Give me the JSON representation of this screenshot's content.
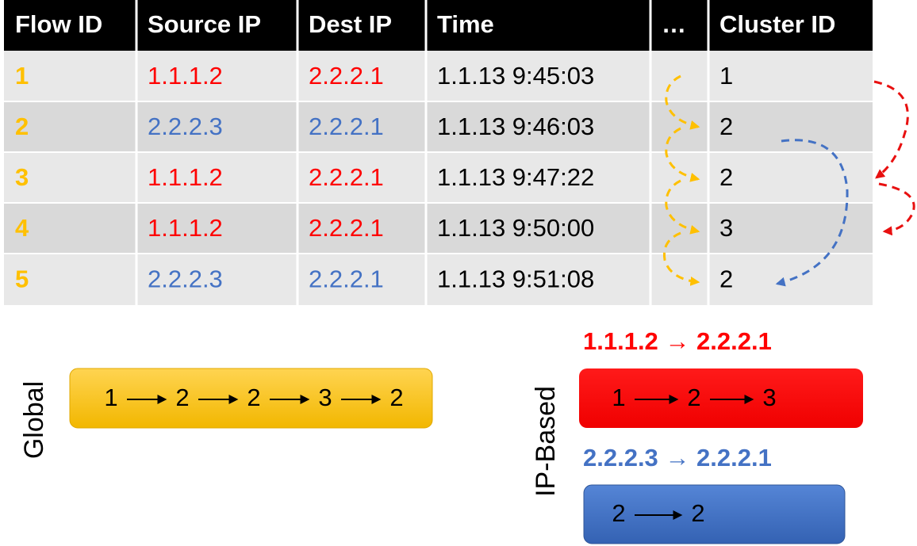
{
  "table": {
    "headers": [
      "Flow ID",
      "Source IP",
      "Dest IP",
      "Time",
      "…",
      "Cluster ID"
    ],
    "rows": [
      {
        "cells": [
          "1",
          "1.1.1.2",
          "2.2.2.1",
          "1.1.13 9:45:03",
          "1"
        ],
        "color": "#ff0000"
      },
      {
        "cells": [
          "2",
          "2.2.2.3",
          "2.2.2.1",
          "1.1.13 9:46:03",
          "2"
        ],
        "color": "#4472c4"
      },
      {
        "cells": [
          "3",
          "1.1.1.2",
          "2.2.2.1",
          "1.1.13 9:47:22",
          "2"
        ],
        "color": "#ff0000"
      },
      {
        "cells": [
          "4",
          "1.1.1.2",
          "2.2.2.1",
          "1.1.13 9:50:00",
          "3"
        ],
        "color": "#ff0000"
      },
      {
        "cells": [
          "5",
          "2.2.2.3",
          "2.2.2.1",
          "1.1.13 9:51:08",
          "2"
        ],
        "color": "#4472c4"
      }
    ]
  },
  "global": {
    "label": "Global",
    "sequence": [
      "1",
      "2",
      "2",
      "3",
      "2"
    ]
  },
  "ip_based": {
    "label": "IP-Based",
    "groups": [
      {
        "label": "1.1.1.2 → 2.2.2.1",
        "color": "#ff0000",
        "sequence": [
          "1",
          "2",
          "3"
        ]
      },
      {
        "label": "2.2.2.3 → 2.2.2.1",
        "color": "#4472c4",
        "sequence": [
          "2",
          "2"
        ]
      }
    ]
  }
}
